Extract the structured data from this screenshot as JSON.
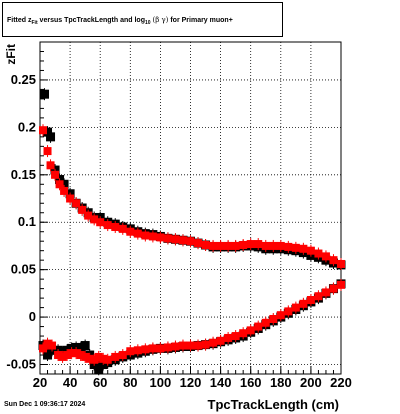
{
  "title_prefix": "Fitted ",
  "title_z": "z",
  "title_z_sub": "Fit",
  "title_mid": " versus TpcTrackLength and log",
  "title_log_sub": "10",
  "title_greek": "(β γ)",
  "title_suffix": " for Primary muon+",
  "footer": "Sun Dec  1 09:36:17 2024",
  "colors": {
    "series1": "#000000",
    "series2": "#ff0000",
    "grid": "#000000"
  },
  "chart_data": {
    "type": "scatter",
    "title": "Fitted zFit versus TpcTrackLength and log10(β γ) for Primary muon+",
    "xlabel": "TpcTrackLength (cm)",
    "ylabel": "zFit",
    "xlim": [
      20,
      220
    ],
    "ylim": [
      -0.06,
      0.29
    ],
    "xticks": [
      20,
      40,
      60,
      80,
      100,
      120,
      140,
      160,
      180,
      200,
      220
    ],
    "yticks": [
      -0.05,
      0,
      0.05,
      0.1,
      0.15,
      0.2,
      0.25
    ],
    "ytick_labels": [
      "-0.05",
      "0",
      "0.05",
      "0.1",
      "0.15",
      "0.2",
      "0.25"
    ],
    "grid": true,
    "series": [
      {
        "values_upper": [
          [
            23,
            0.235
          ],
          [
            25,
            0.195
          ],
          [
            27,
            0.19
          ],
          [
            30,
            0.155
          ],
          [
            33,
            0.145
          ],
          [
            36,
            0.14
          ],
          [
            40,
            0.13
          ],
          [
            44,
            0.12
          ],
          [
            48,
            0.115
          ],
          [
            52,
            0.11
          ],
          [
            56,
            0.105
          ],
          [
            60,
            0.105
          ],
          [
            65,
            0.1
          ],
          [
            70,
            0.098
          ],
          [
            75,
            0.095
          ],
          [
            80,
            0.093
          ],
          [
            85,
            0.09
          ],
          [
            90,
            0.088
          ],
          [
            95,
            0.087
          ],
          [
            100,
            0.085
          ],
          [
            105,
            0.083
          ],
          [
            110,
            0.082
          ],
          [
            115,
            0.081
          ],
          [
            120,
            0.08
          ],
          [
            125,
            0.078
          ],
          [
            130,
            0.076
          ],
          [
            135,
            0.074
          ],
          [
            140,
            0.074
          ],
          [
            145,
            0.074
          ],
          [
            150,
            0.074
          ],
          [
            155,
            0.075
          ],
          [
            160,
            0.075
          ],
          [
            165,
            0.074
          ],
          [
            170,
            0.072
          ],
          [
            175,
            0.072
          ],
          [
            180,
            0.072
          ],
          [
            185,
            0.071
          ],
          [
            190,
            0.07
          ],
          [
            195,
            0.068
          ],
          [
            200,
            0.065
          ],
          [
            205,
            0.063
          ],
          [
            210,
            0.06
          ],
          [
            215,
            0.057
          ],
          [
            220,
            0.055
          ]
        ],
        "values_lower": [
          [
            22,
            -0.03
          ],
          [
            25,
            -0.04
          ],
          [
            28,
            -0.035
          ],
          [
            32,
            -0.035
          ],
          [
            35,
            -0.038
          ],
          [
            38,
            -0.035
          ],
          [
            41,
            -0.033
          ],
          [
            44,
            -0.032
          ],
          [
            47,
            -0.033
          ],
          [
            50,
            -0.03
          ],
          [
            53,
            -0.04
          ],
          [
            56,
            -0.05
          ],
          [
            59,
            -0.055
          ],
          [
            62,
            -0.05
          ],
          [
            65,
            -0.048
          ],
          [
            70,
            -0.045
          ],
          [
            75,
            -0.042
          ],
          [
            80,
            -0.04
          ],
          [
            85,
            -0.038
          ],
          [
            90,
            -0.036
          ],
          [
            95,
            -0.034
          ],
          [
            100,
            -0.033
          ],
          [
            105,
            -0.033
          ],
          [
            110,
            -0.032
          ],
          [
            115,
            -0.031
          ],
          [
            120,
            -0.031
          ],
          [
            125,
            -0.03
          ],
          [
            130,
            -0.029
          ],
          [
            135,
            -0.028
          ],
          [
            140,
            -0.026
          ],
          [
            145,
            -0.024
          ],
          [
            150,
            -0.022
          ],
          [
            155,
            -0.02
          ],
          [
            160,
            -0.016
          ],
          [
            165,
            -0.012
          ],
          [
            170,
            -0.008
          ],
          [
            175,
            -0.004
          ],
          [
            180,
            0
          ],
          [
            185,
            0.004
          ],
          [
            190,
            0.008
          ],
          [
            195,
            0.012
          ],
          [
            200,
            0.016
          ],
          [
            205,
            0.02
          ],
          [
            210,
            0.025
          ],
          [
            215,
            0.03
          ],
          [
            220,
            0.035
          ]
        ]
      },
      {
        "values_upper": [
          [
            22,
            0.197
          ],
          [
            25,
            0.175
          ],
          [
            27,
            0.16
          ],
          [
            30,
            0.15
          ],
          [
            33,
            0.14
          ],
          [
            36,
            0.133
          ],
          [
            40,
            0.125
          ],
          [
            44,
            0.12
          ],
          [
            48,
            0.113
          ],
          [
            52,
            0.107
          ],
          [
            56,
            0.103
          ],
          [
            60,
            0.1
          ],
          [
            65,
            0.097
          ],
          [
            70,
            0.095
          ],
          [
            75,
            0.093
          ],
          [
            80,
            0.09
          ],
          [
            85,
            0.088
          ],
          [
            90,
            0.086
          ],
          [
            95,
            0.085
          ],
          [
            100,
            0.084
          ],
          [
            105,
            0.083
          ],
          [
            110,
            0.082
          ],
          [
            115,
            0.081
          ],
          [
            120,
            0.08
          ],
          [
            125,
            0.078
          ],
          [
            130,
            0.076
          ],
          [
            135,
            0.075
          ],
          [
            140,
            0.075
          ],
          [
            145,
            0.075
          ],
          [
            150,
            0.075
          ],
          [
            155,
            0.076
          ],
          [
            160,
            0.077
          ],
          [
            165,
            0.077
          ],
          [
            170,
            0.075
          ],
          [
            175,
            0.075
          ],
          [
            180,
            0.075
          ],
          [
            185,
            0.074
          ],
          [
            190,
            0.073
          ],
          [
            195,
            0.072
          ],
          [
            200,
            0.07
          ],
          [
            205,
            0.067
          ],
          [
            210,
            0.064
          ],
          [
            215,
            0.06
          ],
          [
            220,
            0.056
          ]
        ],
        "values_lower": [
          [
            22,
            -0.033
          ],
          [
            25,
            -0.028
          ],
          [
            28,
            -0.03
          ],
          [
            32,
            -0.04
          ],
          [
            35,
            -0.042
          ],
          [
            38,
            -0.04
          ],
          [
            41,
            -0.038
          ],
          [
            44,
            -0.038
          ],
          [
            47,
            -0.04
          ],
          [
            50,
            -0.042
          ],
          [
            53,
            -0.044
          ],
          [
            56,
            -0.045
          ],
          [
            59,
            -0.042
          ],
          [
            62,
            -0.044
          ],
          [
            65,
            -0.045
          ],
          [
            70,
            -0.042
          ],
          [
            75,
            -0.04
          ],
          [
            80,
            -0.036
          ],
          [
            85,
            -0.035
          ],
          [
            90,
            -0.034
          ],
          [
            95,
            -0.033
          ],
          [
            100,
            -0.033
          ],
          [
            105,
            -0.032
          ],
          [
            110,
            -0.031
          ],
          [
            115,
            -0.03
          ],
          [
            120,
            -0.03
          ],
          [
            125,
            -0.03
          ],
          [
            130,
            -0.029
          ],
          [
            135,
            -0.027
          ],
          [
            140,
            -0.025
          ],
          [
            145,
            -0.022
          ],
          [
            150,
            -0.02
          ],
          [
            155,
            -0.017
          ],
          [
            160,
            -0.014
          ],
          [
            165,
            -0.01
          ],
          [
            170,
            -0.006
          ],
          [
            175,
            -0.002
          ],
          [
            180,
            0.002
          ],
          [
            185,
            0.006
          ],
          [
            190,
            0.01
          ],
          [
            195,
            0.014
          ],
          [
            200,
            0.018
          ],
          [
            205,
            0.022
          ],
          [
            210,
            0.026
          ],
          [
            215,
            0.03
          ],
          [
            220,
            0.034
          ]
        ]
      }
    ]
  }
}
